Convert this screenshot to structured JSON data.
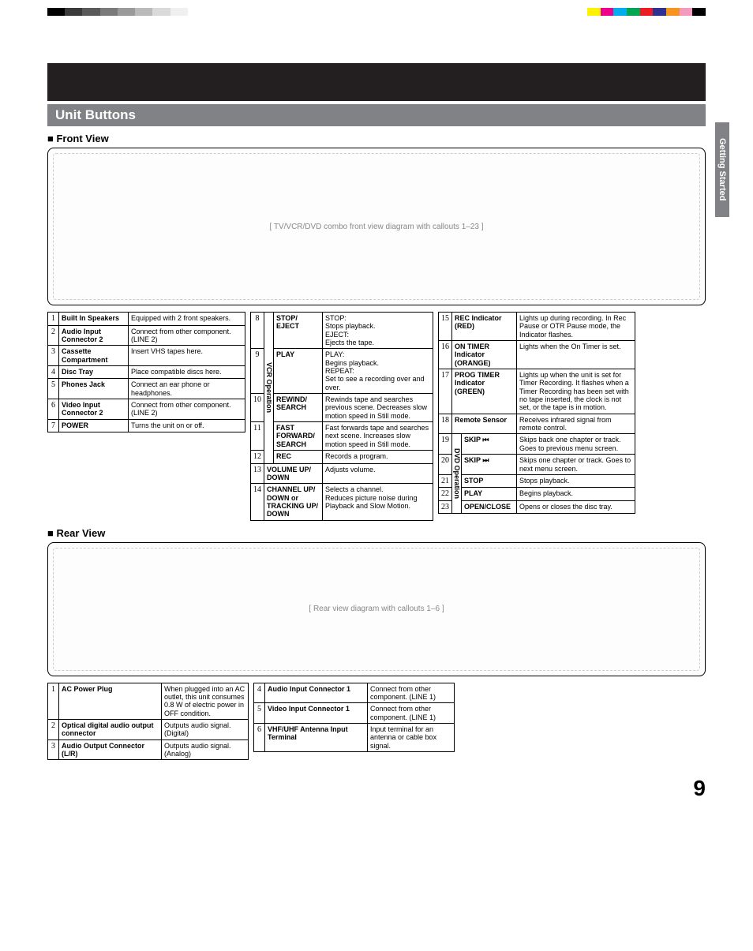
{
  "side_tab": "Getting Started",
  "section_title": "Unit Buttons",
  "front_heading": "Front View",
  "rear_heading": "Rear View",
  "page_number": "9",
  "front_diagram_alt": "[ TV/VCR/DVD combo front view diagram with callouts 1–23 ]",
  "rear_diagram_alt": "[ Rear view diagram with callouts 1–6 ]",
  "color_bar_left": [
    "#000000",
    "#3a3a3a",
    "#5a5a5a",
    "#7a7a7a",
    "#9a9a9a",
    "#bababa",
    "#dadada",
    "#f0f0f0",
    "#ffffff"
  ],
  "color_bar_right": [
    "#fff200",
    "#ec008c",
    "#00aeef",
    "#00a651",
    "#ed1c24",
    "#2e3192",
    "#f7941d",
    "#f49ac1",
    "#000000"
  ],
  "front_table1": {
    "cols_w": [
      14,
      88,
      148
    ],
    "rows": [
      {
        "n": "1",
        "name": "Built In Speakers",
        "desc": "Equipped with 2 front speakers."
      },
      {
        "n": "2",
        "name": "Audio Input Connector 2",
        "desc": "Connect from other component. (LINE 2)"
      },
      {
        "n": "3",
        "name": "Cassette Compartment",
        "desc": "Insert VHS tapes here."
      },
      {
        "n": "4",
        "name": "Disc Tray",
        "desc": "Place compatible discs here."
      },
      {
        "n": "5",
        "name": "Phones Jack",
        "desc": "Connect an ear phone or headphones."
      },
      {
        "n": "6",
        "name": "Video Input Connector 2",
        "desc": "Connect from other component. (LINE 2)"
      },
      {
        "n": "7",
        "name": "POWER",
        "desc": "Turns the unit on or off."
      }
    ]
  },
  "front_table2": {
    "group_label": "VCR Operation",
    "cols_w": [
      14,
      12,
      62,
      140
    ],
    "grouped_rows": [
      {
        "n": "8",
        "name": "STOP/ EJECT",
        "desc": "STOP:\nStops playback.\nEJECT:\nEjects the tape."
      },
      {
        "n": "9",
        "name": "PLAY",
        "desc": "PLAY:\nBegins playback.\nREPEAT:\nSet to see a recording over and over."
      },
      {
        "n": "10",
        "name": "REWIND/ SEARCH",
        "desc": "Rewinds tape and searches previous scene. Decreases slow motion speed in Still mode."
      },
      {
        "n": "11",
        "name": "FAST FORWARD/ SEARCH",
        "desc": "Fast forwards tape and searches next scene. Increases slow motion speed in Still mode."
      },
      {
        "n": "12",
        "name": "REC",
        "desc": "Records a program."
      }
    ],
    "plain_rows": [
      {
        "n": "13",
        "name": "VOLUME UP/ DOWN",
        "desc": "Adjusts volume."
      },
      {
        "n": "14",
        "name": "CHANNEL UP/ DOWN or TRACKING UP/ DOWN",
        "desc": "Selects a channel.\nReduces picture noise during Playback and Slow Motion."
      }
    ]
  },
  "front_table3": {
    "group_label": "DVD Operation",
    "cols_w": [
      14,
      12,
      70,
      150
    ],
    "top_rows": [
      {
        "n": "15",
        "name": "REC Indicator (RED)",
        "desc": "Lights up during recording. In Rec Pause or OTR Pause mode, the Indicator flashes."
      },
      {
        "n": "16",
        "name": "ON TIMER Indicator (ORANGE)",
        "desc": "Lights when the On Timer is set."
      },
      {
        "n": "17",
        "name": "PROG TIMER Indicator (GREEN)",
        "desc": "Lights up when the unit is set for Timer Recording. It flashes when a Timer Recording has been set with no tape inserted, the clock is not set, or the tape is in motion."
      },
      {
        "n": "18",
        "name": "Remote Sensor",
        "desc": "Receives infrared signal from remote control."
      }
    ],
    "grouped_rows": [
      {
        "n": "19",
        "name": "SKIP ⏮",
        "desc": "Skips back one chapter or track. Goes to previous menu screen."
      },
      {
        "n": "20",
        "name": "SKIP ⏭",
        "desc": "Skips one chapter or track. Goes to next menu screen."
      },
      {
        "n": "21",
        "name": "STOP",
        "desc": "Stops playback."
      },
      {
        "n": "22",
        "name": "PLAY",
        "desc": "Begins playback."
      },
      {
        "n": "23",
        "name": "OPEN/CLOSE",
        "desc": "Opens or closes the disc tray."
      }
    ]
  },
  "rear_table1": {
    "cols_w": [
      14,
      130,
      110
    ],
    "rows": [
      {
        "n": "1",
        "name": "AC Power Plug",
        "desc": "When plugged into an AC outlet, this unit consumes 0.8 W of electric power in OFF condition."
      },
      {
        "n": "2",
        "name": "Optical digital audio output connector",
        "desc": "Outputs audio signal. (Digital)"
      },
      {
        "n": "3",
        "name": "Audio Output Connector (L/R)",
        "desc": "Outputs audio signal. (Analog)"
      }
    ]
  },
  "rear_table2": {
    "cols_w": [
      14,
      130,
      110
    ],
    "rows": [
      {
        "n": "4",
        "name": "Audio Input Connector 1",
        "desc": "Connect from other component. (LINE 1)"
      },
      {
        "n": "5",
        "name": "Video Input Connector 1",
        "desc": "Connect from other component. (LINE 1)"
      },
      {
        "n": "6",
        "name": "VHF/UHF Antenna Input Terminal",
        "desc": "Input terminal for an antenna or cable box signal."
      }
    ]
  }
}
